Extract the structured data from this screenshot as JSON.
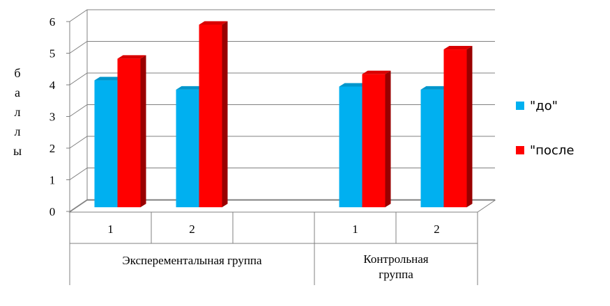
{
  "chart_data": {
    "type": "bar3d",
    "y_label": "баллы",
    "categories": [
      "1",
      "2",
      null,
      "1",
      "2"
    ],
    "group_labels": [
      "Эксперементалыная группа",
      "Контрольная группа"
    ],
    "series": [
      {
        "name": "\"до\"",
        "color": "#00b0f0",
        "values": [
          4.1,
          3.8,
          null,
          3.9,
          3.8
        ]
      },
      {
        "name": "\"после",
        "color": "#ff0000",
        "values": [
          4.8,
          5.9,
          null,
          4.3,
          5.1
        ]
      }
    ],
    "ylim": [
      0,
      6
    ],
    "yticks": [
      0,
      1,
      2,
      3,
      4,
      5,
      6
    ],
    "grid": true,
    "legend": "right"
  }
}
